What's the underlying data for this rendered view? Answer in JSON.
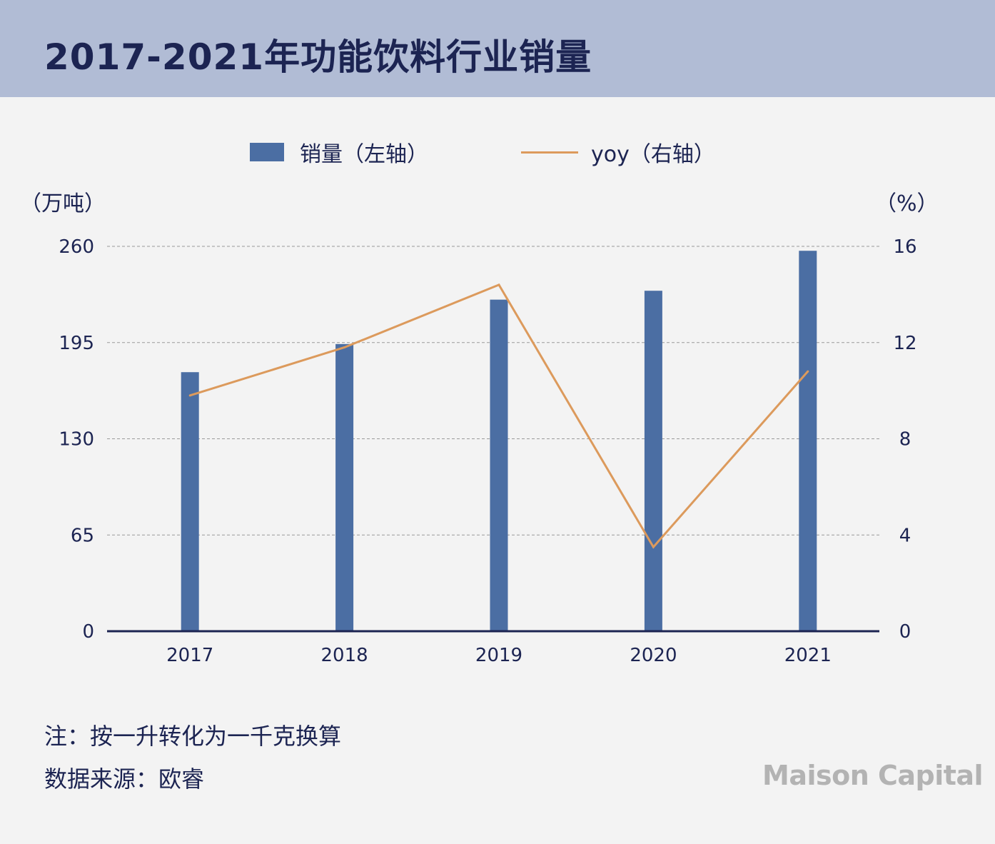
{
  "header": {
    "title": "2017-2021年功能饮料行业销量",
    "background_color": "#b1bcd5"
  },
  "legend": {
    "bar_label": "销量（左轴）",
    "line_label": "yoy（右轴）"
  },
  "units": {
    "left": "（万吨）",
    "right": "（%）"
  },
  "chart_data": {
    "type": "bar",
    "categories": [
      "2017",
      "2018",
      "2019",
      "2020",
      "2021"
    ],
    "series": [
      {
        "name": "销量（左轴）",
        "type": "bar",
        "axis": "left",
        "color": "#4b6ea3",
        "values": [
          175,
          194,
          224,
          230,
          257
        ]
      },
      {
        "name": "yoy（右轴）",
        "type": "line",
        "axis": "right",
        "color": "#dc9a5c",
        "values": [
          9.8,
          11.8,
          14.4,
          3.5,
          10.8
        ]
      }
    ],
    "y_left": {
      "ticks": [
        "0",
        "65",
        "130",
        "195",
        "260"
      ],
      "ylim": [
        0,
        260
      ]
    },
    "y_right": {
      "ticks": [
        "0",
        "4",
        "8",
        "12",
        "16"
      ],
      "ylim": [
        0,
        16
      ]
    },
    "grid": true,
    "legend_position": "top-center"
  },
  "notes": {
    "note1": "注：按一升转化为一千克换算",
    "note2": "数据来源：欧睿"
  },
  "watermark": "Maison Capital"
}
